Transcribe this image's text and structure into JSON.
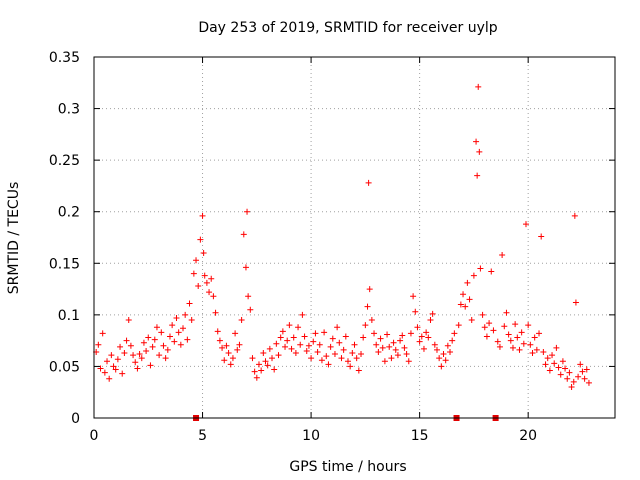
{
  "chart_data": {
    "type": "scatter",
    "title": "Day 253 of 2019, SRMTID for receiver uylp",
    "xlabel": "GPS time / hours",
    "ylabel": "SRMTID / TECUs",
    "xlim": [
      0,
      24
    ],
    "ylim": [
      0,
      0.35
    ],
    "xticks": [
      0,
      5,
      10,
      15,
      20
    ],
    "xtick_labels": [
      "0",
      "5",
      "10",
      "15",
      "20"
    ],
    "yticks": [
      0,
      0.05,
      0.1,
      0.15,
      0.2,
      0.25,
      0.3,
      0.35
    ],
    "ytick_labels": [
      "0",
      "0.05",
      "0.1",
      "0.15",
      "0.2",
      "0.25",
      "0.3",
      "0.35"
    ],
    "grid": true,
    "marker": "plus",
    "color": "#ff0000",
    "data_gap_markers_hours": [
      4.7,
      16.7,
      18.5
    ],
    "points": [
      [
        0.1,
        0.064
      ],
      [
        0.2,
        0.071
      ],
      [
        0.3,
        0.048
      ],
      [
        0.4,
        0.082
      ],
      [
        0.5,
        0.044
      ],
      [
        0.6,
        0.055
      ],
      [
        0.7,
        0.038
      ],
      [
        0.8,
        0.061
      ],
      [
        0.9,
        0.05
      ],
      [
        1.0,
        0.047
      ],
      [
        1.1,
        0.057
      ],
      [
        1.2,
        0.069
      ],
      [
        1.3,
        0.043
      ],
      [
        1.4,
        0.063
      ],
      [
        1.5,
        0.075
      ],
      [
        1.6,
        0.095
      ],
      [
        1.7,
        0.07
      ],
      [
        1.8,
        0.061
      ],
      [
        1.9,
        0.054
      ],
      [
        2.0,
        0.048
      ],
      [
        2.1,
        0.062
      ],
      [
        2.2,
        0.058
      ],
      [
        2.3,
        0.073
      ],
      [
        2.4,
        0.065
      ],
      [
        2.5,
        0.078
      ],
      [
        2.6,
        0.051
      ],
      [
        2.7,
        0.069
      ],
      [
        2.8,
        0.076
      ],
      [
        2.9,
        0.088
      ],
      [
        3.0,
        0.061
      ],
      [
        3.1,
        0.083
      ],
      [
        3.2,
        0.07
      ],
      [
        3.3,
        0.058
      ],
      [
        3.4,
        0.066
      ],
      [
        3.5,
        0.079
      ],
      [
        3.6,
        0.09
      ],
      [
        3.7,
        0.074
      ],
      [
        3.8,
        0.097
      ],
      [
        3.9,
        0.083
      ],
      [
        4.0,
        0.071
      ],
      [
        4.1,
        0.087
      ],
      [
        4.2,
        0.1
      ],
      [
        4.3,
        0.076
      ],
      [
        4.4,
        0.111
      ],
      [
        4.5,
        0.095
      ],
      [
        4.6,
        0.14
      ],
      [
        4.7,
        0.153
      ],
      [
        4.8,
        0.128
      ],
      [
        4.9,
        0.173
      ],
      [
        5.0,
        0.196
      ],
      [
        5.05,
        0.16
      ],
      [
        5.1,
        0.138
      ],
      [
        5.2,
        0.131
      ],
      [
        5.3,
        0.122
      ],
      [
        5.4,
        0.135
      ],
      [
        5.5,
        0.118
      ],
      [
        5.6,
        0.102
      ],
      [
        5.7,
        0.084
      ],
      [
        5.8,
        0.075
      ],
      [
        5.9,
        0.068
      ],
      [
        6.0,
        0.056
      ],
      [
        6.1,
        0.07
      ],
      [
        6.2,
        0.063
      ],
      [
        6.3,
        0.052
      ],
      [
        6.4,
        0.058
      ],
      [
        6.5,
        0.082
      ],
      [
        6.6,
        0.066
      ],
      [
        6.7,
        0.071
      ],
      [
        6.8,
        0.095
      ],
      [
        6.9,
        0.178
      ],
      [
        7.0,
        0.146
      ],
      [
        7.05,
        0.2
      ],
      [
        7.1,
        0.118
      ],
      [
        7.2,
        0.105
      ],
      [
        7.3,
        0.058
      ],
      [
        7.4,
        0.045
      ],
      [
        7.5,
        0.039
      ],
      [
        7.6,
        0.052
      ],
      [
        7.7,
        0.046
      ],
      [
        7.8,
        0.063
      ],
      [
        7.9,
        0.055
      ],
      [
        8.0,
        0.051
      ],
      [
        8.1,
        0.067
      ],
      [
        8.2,
        0.058
      ],
      [
        8.3,
        0.047
      ],
      [
        8.4,
        0.072
      ],
      [
        8.5,
        0.061
      ],
      [
        8.6,
        0.078
      ],
      [
        8.7,
        0.084
      ],
      [
        8.8,
        0.069
      ],
      [
        8.9,
        0.075
      ],
      [
        9.0,
        0.09
      ],
      [
        9.1,
        0.067
      ],
      [
        9.2,
        0.078
      ],
      [
        9.3,
        0.063
      ],
      [
        9.4,
        0.088
      ],
      [
        9.5,
        0.071
      ],
      [
        9.6,
        0.1
      ],
      [
        9.7,
        0.079
      ],
      [
        9.8,
        0.065
      ],
      [
        9.9,
        0.07
      ],
      [
        10.0,
        0.058
      ],
      [
        10.1,
        0.074
      ],
      [
        10.2,
        0.082
      ],
      [
        10.3,
        0.064
      ],
      [
        10.4,
        0.071
      ],
      [
        10.5,
        0.056
      ],
      [
        10.6,
        0.083
      ],
      [
        10.7,
        0.06
      ],
      [
        10.8,
        0.052
      ],
      [
        10.9,
        0.069
      ],
      [
        11.0,
        0.077
      ],
      [
        11.1,
        0.062
      ],
      [
        11.2,
        0.088
      ],
      [
        11.3,
        0.073
      ],
      [
        11.4,
        0.058
      ],
      [
        11.5,
        0.066
      ],
      [
        11.6,
        0.079
      ],
      [
        11.7,
        0.055
      ],
      [
        11.8,
        0.05
      ],
      [
        11.9,
        0.063
      ],
      [
        12.0,
        0.071
      ],
      [
        12.1,
        0.058
      ],
      [
        12.2,
        0.046
      ],
      [
        12.3,
        0.062
      ],
      [
        12.4,
        0.078
      ],
      [
        12.5,
        0.09
      ],
      [
        12.6,
        0.108
      ],
      [
        12.65,
        0.228
      ],
      [
        12.7,
        0.125
      ],
      [
        12.8,
        0.095
      ],
      [
        12.9,
        0.082
      ],
      [
        13.0,
        0.071
      ],
      [
        13.1,
        0.064
      ],
      [
        13.2,
        0.077
      ],
      [
        13.3,
        0.068
      ],
      [
        13.4,
        0.055
      ],
      [
        13.5,
        0.081
      ],
      [
        13.6,
        0.069
      ],
      [
        13.7,
        0.058
      ],
      [
        13.8,
        0.073
      ],
      [
        13.9,
        0.066
      ],
      [
        14.0,
        0.061
      ],
      [
        14.1,
        0.075
      ],
      [
        14.2,
        0.08
      ],
      [
        14.3,
        0.068
      ],
      [
        14.4,
        0.062
      ],
      [
        14.5,
        0.055
      ],
      [
        14.6,
        0.082
      ],
      [
        14.7,
        0.118
      ],
      [
        14.8,
        0.103
      ],
      [
        14.9,
        0.088
      ],
      [
        15.0,
        0.074
      ],
      [
        15.1,
        0.079
      ],
      [
        15.2,
        0.067
      ],
      [
        15.3,
        0.083
      ],
      [
        15.4,
        0.078
      ],
      [
        15.5,
        0.095
      ],
      [
        15.6,
        0.101
      ],
      [
        15.7,
        0.071
      ],
      [
        15.8,
        0.066
      ],
      [
        15.9,
        0.058
      ],
      [
        16.0,
        0.05
      ],
      [
        16.1,
        0.062
      ],
      [
        16.2,
        0.056
      ],
      [
        16.3,
        0.07
      ],
      [
        16.4,
        0.064
      ],
      [
        16.5,
        0.075
      ],
      [
        16.6,
        0.082
      ],
      [
        16.8,
        0.09
      ],
      [
        16.9,
        0.11
      ],
      [
        17.0,
        0.12
      ],
      [
        17.1,
        0.108
      ],
      [
        17.2,
        0.131
      ],
      [
        17.3,
        0.115
      ],
      [
        17.4,
        0.095
      ],
      [
        17.5,
        0.138
      ],
      [
        17.6,
        0.268
      ],
      [
        17.65,
        0.235
      ],
      [
        17.7,
        0.321
      ],
      [
        17.75,
        0.258
      ],
      [
        17.8,
        0.145
      ],
      [
        17.9,
        0.1
      ],
      [
        18.0,
        0.088
      ],
      [
        18.1,
        0.079
      ],
      [
        18.2,
        0.092
      ],
      [
        18.3,
        0.142
      ],
      [
        18.4,
        0.085
      ],
      [
        18.6,
        0.074
      ],
      [
        18.7,
        0.069
      ],
      [
        18.8,
        0.158
      ],
      [
        18.9,
        0.089
      ],
      [
        19.0,
        0.102
      ],
      [
        19.1,
        0.081
      ],
      [
        19.2,
        0.075
      ],
      [
        19.3,
        0.068
      ],
      [
        19.4,
        0.091
      ],
      [
        19.5,
        0.078
      ],
      [
        19.6,
        0.066
      ],
      [
        19.7,
        0.083
      ],
      [
        19.8,
        0.072
      ],
      [
        19.9,
        0.188
      ],
      [
        20.0,
        0.09
      ],
      [
        20.1,
        0.071
      ],
      [
        20.2,
        0.063
      ],
      [
        20.3,
        0.078
      ],
      [
        20.4,
        0.066
      ],
      [
        20.5,
        0.082
      ],
      [
        20.6,
        0.176
      ],
      [
        20.7,
        0.064
      ],
      [
        20.8,
        0.052
      ],
      [
        20.9,
        0.058
      ],
      [
        21.0,
        0.046
      ],
      [
        21.1,
        0.061
      ],
      [
        21.2,
        0.053
      ],
      [
        21.3,
        0.068
      ],
      [
        21.4,
        0.049
      ],
      [
        21.5,
        0.042
      ],
      [
        21.6,
        0.055
      ],
      [
        21.7,
        0.048
      ],
      [
        21.8,
        0.038
      ],
      [
        21.9,
        0.044
      ],
      [
        22.0,
        0.03
      ],
      [
        22.1,
        0.035
      ],
      [
        22.15,
        0.196
      ],
      [
        22.2,
        0.112
      ],
      [
        22.3,
        0.04
      ],
      [
        22.4,
        0.052
      ],
      [
        22.5,
        0.045
      ],
      [
        22.6,
        0.038
      ],
      [
        22.7,
        0.047
      ],
      [
        22.8,
        0.034
      ]
    ]
  }
}
